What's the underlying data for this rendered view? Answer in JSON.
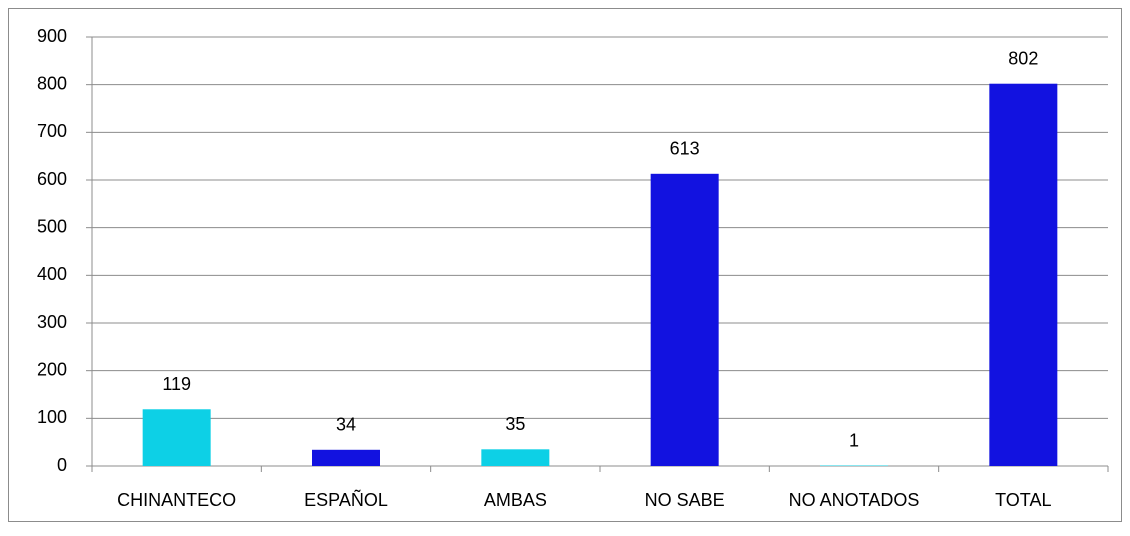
{
  "chart_data": {
    "type": "bar",
    "categories": [
      "CHINANTECO",
      "ESPAÑOL",
      "AMBAS",
      "NO SABE",
      "NO ANOTADOS",
      "TOTAL"
    ],
    "values": [
      119,
      34,
      35,
      613,
      1,
      802
    ],
    "colors": [
      "#0dd0e6",
      "#1212e0",
      "#0dd0e6",
      "#1212e0",
      "#0dd0e6",
      "#1212e0"
    ],
    "ylim": [
      0,
      900
    ],
    "yticks": [
      0,
      100,
      200,
      300,
      400,
      500,
      600,
      700,
      800,
      900
    ],
    "grid": true
  }
}
